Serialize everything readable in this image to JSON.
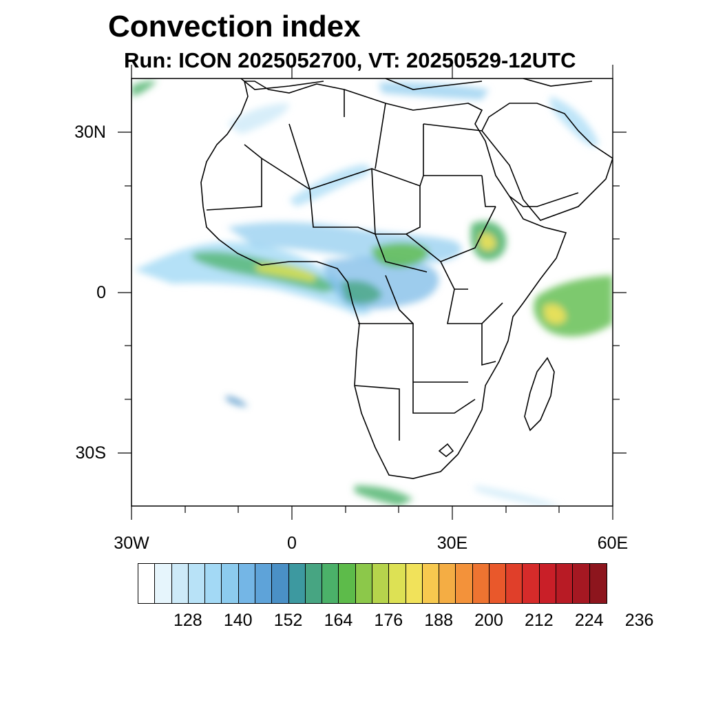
{
  "title": "Convection index",
  "subtitle": "Run: ICON 2025052700,  VT: 20250529-12UTC",
  "map": {
    "projection": "cylindrical equidistant",
    "lon_range": [
      -30,
      60
    ],
    "lat_range": [
      -40,
      40
    ],
    "lat_ticks": [
      {
        "value": 30,
        "label": "30N"
      },
      {
        "value": 0,
        "label": "0"
      },
      {
        "value": -30,
        "label": "30S"
      }
    ],
    "lon_ticks": [
      {
        "value": -30,
        "label": "30W"
      },
      {
        "value": 0,
        "label": "0"
      },
      {
        "value": 30,
        "label": "30E"
      },
      {
        "value": 60,
        "label": "60E"
      }
    ]
  },
  "colorbar": {
    "colors": [
      "#ffffff",
      "#e6f5fc",
      "#cdeaf8",
      "#b8e2f7",
      "#a3d9f5",
      "#8ccbee",
      "#74b6e6",
      "#5ea3d9",
      "#4a90c6",
      "#3d99a0",
      "#47a582",
      "#4bb169",
      "#5dbb4a",
      "#8cc84a",
      "#b6d44c",
      "#dde154",
      "#f1e25a",
      "#f7c94f",
      "#f4ad44",
      "#f3923a",
      "#ee7431",
      "#e9582b",
      "#e03f2a",
      "#d62b2a",
      "#c91f28",
      "#b81b25",
      "#a51822",
      "#8d151d"
    ],
    "labels": [
      "128",
      "140",
      "152",
      "164",
      "176",
      "188",
      "200",
      "212",
      "224",
      "236"
    ]
  },
  "legend": {
    "colorbar-note": "convection index shading scale"
  }
}
